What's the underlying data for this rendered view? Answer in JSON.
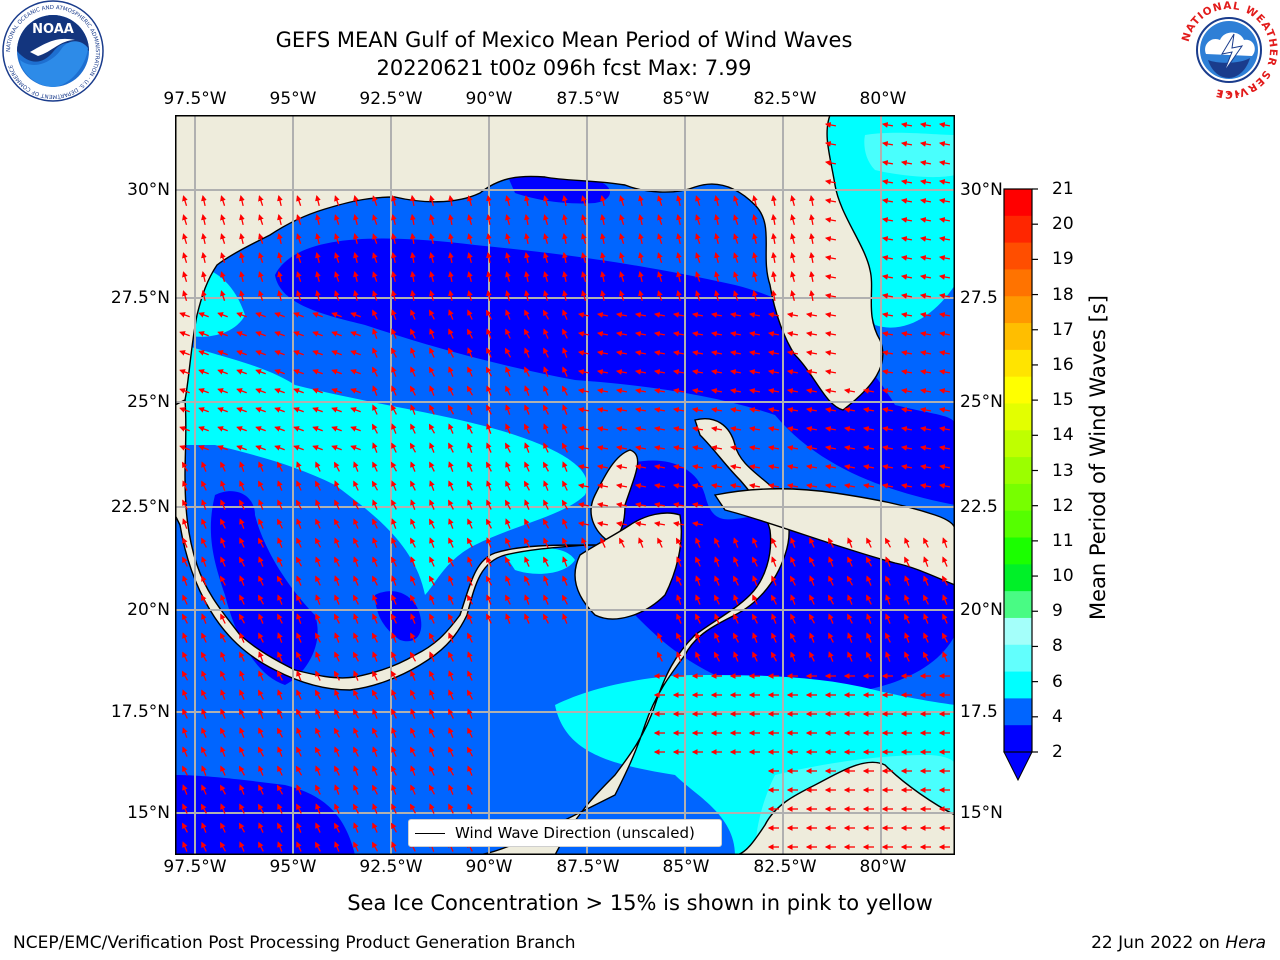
{
  "header": {
    "title_line1": "GEFS MEAN Gulf of Mexico Mean Period of Wind Waves",
    "title_line2": "20220621 t00z 096h fcst   Max: 7.99"
  },
  "logos": {
    "left": {
      "name": "noaa-logo",
      "text": "NOAA",
      "ring_text": "NATIONAL OCEANIC AND ATMOSPHERIC ADMINISTRATION · U.S. DEPARTMENT OF COMMERCE"
    },
    "right": {
      "name": "nws-logo",
      "ring_text": "NATIONAL WEATHER SERVICE"
    }
  },
  "map": {
    "lon_ticks": [
      "97.5°W",
      "95°W",
      "92.5°W",
      "90°W",
      "87.5°W",
      "85°W",
      "82.5°W",
      "80°W"
    ],
    "lat_ticks_left": [
      "30°N",
      "27.5°N",
      "25°N",
      "22.5°N",
      "20°N",
      "17.5°N",
      "15°N"
    ],
    "lat_ticks_right": [
      "30°N",
      "27.5",
      "25°N",
      "22.5",
      "20°N",
      "17.5",
      "15°N"
    ],
    "colors": {
      "land": "#eeecdc",
      "level_2_4": "#0065ff",
      "level_below_2": "#0000ff",
      "level_4_6": "#00ffff",
      "level_6_8": "#49fffd",
      "arrow": "#ff0000",
      "grid": "#b0b0b0"
    },
    "legend_label": "Wind Wave Direction (unscaled)"
  },
  "colorbar": {
    "label": "Mean Period of Wind Waves [s]",
    "ticks": [
      "21",
      "20",
      "19",
      "18",
      "17",
      "16",
      "15",
      "14",
      "13",
      "12",
      "11",
      "10",
      "9",
      "8",
      "6",
      "4",
      "2"
    ],
    "colors": [
      "#ff0000",
      "#ff2600",
      "#ff4e00",
      "#ff7300",
      "#ff9800",
      "#ffbe00",
      "#ffe400",
      "#ffff00",
      "#e3ff00",
      "#bfff00",
      "#9bff00",
      "#77ff00",
      "#55ff00",
      "#1bff00",
      "#00f028",
      "#49fb84",
      "#a4fffa",
      "#62fffd",
      "#00ffff",
      "#0065ff",
      "#0000ff"
    ]
  },
  "caption": "Sea Ice Concentration > 15% is shown in pink to yellow",
  "footer": {
    "left": "NCEP/EMC/Verification Post Processing Product Generation Branch",
    "date": "22 Jun 2022 on ",
    "machine": "Hera"
  }
}
